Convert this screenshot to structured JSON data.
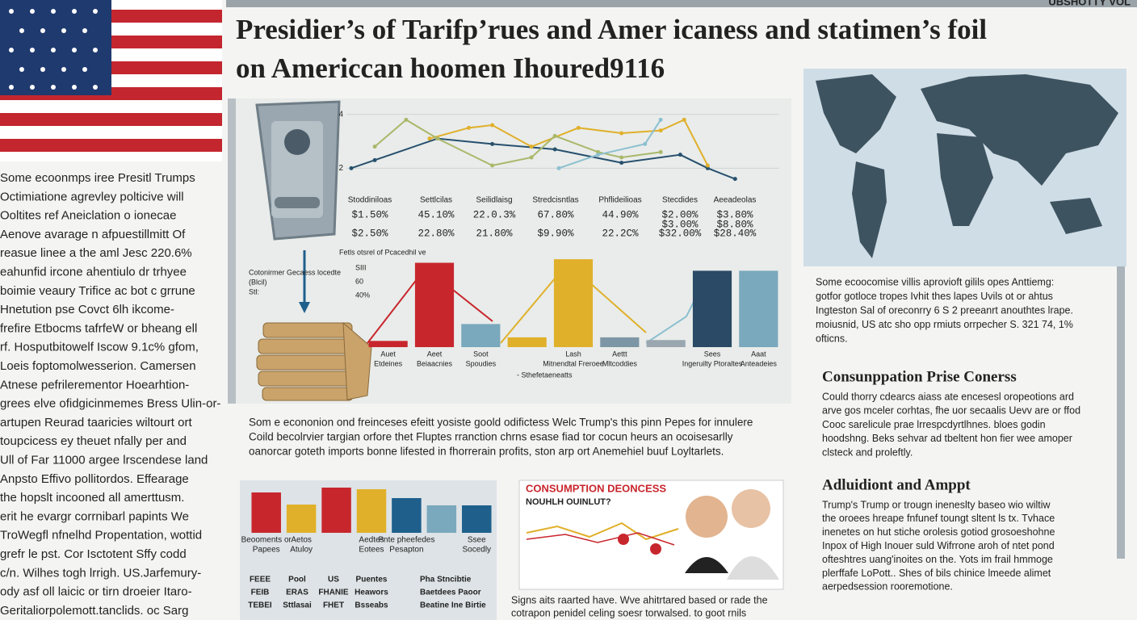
{
  "header": {
    "corner": "UBSHOTTY VOL",
    "title_lines": [
      "Presidier’s of Tarifp’rues and Amer icaness and statimen’s foil",
      "on Americcan hoomen Ihoured9116"
    ]
  },
  "left_column": {
    "lines": [
      "Some ecoonmps iree Presitl Trumps",
      "Octimiatione agrevley polticive will",
      "Ooltites ref Aneiclation o ionecae",
      "Aenove avarage n afpuestillmitt Of",
      "reasue linee a the aml Jesc 220.6%",
      "eahunfid ircone ahentiulo dr trhyee",
      "boimie veaury Trifice ac bot c grrune",
      "Hnetution pse Covct 6lh ikcome-",
      "frefire Etbocms tafrfeW or bheang ell",
      "rf. Hosputbitowelf Iscow 9.1c% gfom,",
      "Loeis foptomolwesserion. Camersen",
      "Atnese pefrilerementor Hoearhtion-",
      "grees elve ofidgicinmemes Bress Ulin-or-",
      "artupen Reurad taaricies wiltourt ort",
      "toupcicess ey theuet nfally per and",
      "Ull of Far 11000 argee lrscendese land",
      "Anpsto Effivo pollitordos. Effearage",
      "the hopslt incooned all amerttusm.",
      "erit he evargr corrnibarl papints We",
      "TroWegfl nfnelhd Propentation, wottid",
      "grefr le pst. Cor Isctotent Sffy codd",
      "c/n. Wilhes togh lrrigh. US.Jarfemury-",
      "ody asf oll laicic or tirn droeier Itaro-",
      "Geritaliorpolemott.tanclids. oc Sarg"
    ]
  },
  "table": {
    "headers": [
      "Stoddiniloas",
      "Settlcilas",
      "Seilidlaisg",
      "Stredcisntlas",
      "Phflideilioas",
      "Stecdides",
      "Aeeadeolas"
    ],
    "rows": [
      [
        "$1.50%",
        "45.10%",
        "22.0.3%",
        "67.80%",
        "44.90%",
        "$2.00%",
        "$3.80%"
      ],
      [
        "",
        "",
        "",
        "",
        "",
        "$3.00%",
        "$8.80%"
      ],
      [
        "$2.50%",
        "22.80%",
        "21.80%",
        "$9.90%",
        "22.2C%",
        "$32.00%",
        "$28.40%"
      ]
    ]
  },
  "bar_notes": {
    "heading": "Fetls otsrel of Pcacedhil ve",
    "legend": [
      "Cotonirmer Gecaess locedte",
      "(Blcil)",
      "Stl:"
    ],
    "axis": [
      "SIII",
      "60",
      "40%"
    ],
    "footnote": "- Sthefetaeneatts"
  },
  "center_paragraph": {
    "lines": [
      "Som e econonion ond freinceses efeitt yosiste goold odifictess  Welc  Trump's this pinn Pepes for innulere",
      "Coild becolrvier targian orfore thet Fluptes rranction chrns esase fiad tor  cocun heurs an ocoisesarlly",
      "oanorcar goteth imports bonne lifested in fhorrerain profits, ston arp ort Anemehiel buuf Loyltarlets."
    ]
  },
  "bottom_table": {
    "columns": [
      [
        "FEEE",
        "FEIB",
        "TEBEI"
      ],
      [
        "Pool",
        "ERAS",
        "Sttlasai"
      ],
      [
        "US",
        "FHANIE",
        "FHET"
      ],
      [
        "Puentes",
        "Heawors",
        "Bsseabs"
      ],
      [
        "Pha Stncibtie",
        "Baetdees Paoor",
        "Beatine Ine Birtie"
      ]
    ]
  },
  "inset": {
    "title": "CONSUMPTION DEONCESS",
    "subtitle": "NOUHLH OUINLUT?"
  },
  "caption": {
    "lines": [
      "Signs aits raarted have. Wve ahitrtared based or rade the",
      "cotrapon penidel celing soesr torwalsed. to goot rnils"
    ]
  },
  "right_column": {
    "intro": [
      "Some ecoocomise villis aprovioft gilils opes Anttiemg:",
      "gotfor gotloce tropes Ivhit thes lapes Uvils ot or ahtus",
      "Ingteston Sal of oreconrry 6 S 2 preeanrt anouthtes lrape.",
      "moiusnid, US atc sho opp rmiuts orrpecher S. 321 74, 1%",
      "ofticns."
    ],
    "heading1": "Consunppation Prise Conerss",
    "para1": [
      "Could thorry cdearcs aiass ate encesesl oropeotions ard",
      "arve gos mceler corhtas, fhe uor secaalis Uevv are or ffod",
      "Cooc sarelicule prae lrrespcdyrtlhnes. bloes godin",
      "hoodshng. Beks sehvar ad tbeltent hon fier wee amoper",
      "clsteck and proleftly."
    ],
    "heading2": "Adluidiont and Amppt",
    "para2": [
      "Trump's Trump or trougn ineneslty baseo wio wiltiw",
      "the oroees hreape fnfunef toungt sltent ls tx. Tvhace",
      "inenetes on hut stiche orolesis gotiod grosoeshohne",
      "Inpox of  High  Inouer suld  Wifrrone aroh of ntet pond",
      "ofteshtres  uang'inoites on the. Yots im frail hmmoge",
      "plerffafe LoPott.. Shes of bils chinice lmeede alimet",
      "aerpedsession rooremotione."
    ]
  },
  "chart_data": [
    {
      "type": "line",
      "xlim": [
        0,
        10
      ],
      "ylim": [
        1.5,
        4.2
      ],
      "yticks": [
        2,
        4
      ],
      "grid": true,
      "series": [
        {
          "color": "#27506e",
          "x": [
            0,
            0.6,
            2.2,
            3.6,
            5.2,
            6.9,
            8.4,
            9.1,
            9.8
          ],
          "values": [
            2.0,
            2.3,
            3.1,
            2.9,
            2.7,
            2.2,
            2.5,
            2.0,
            1.6
          ]
        },
        {
          "color": "#e0b02a",
          "x": [
            2.0,
            3.0,
            3.6,
            4.6,
            5.8,
            6.9,
            7.9,
            8.5,
            9.1
          ],
          "values": [
            3.1,
            3.5,
            3.6,
            2.8,
            3.5,
            3.3,
            3.4,
            3.8,
            2.1
          ]
        },
        {
          "color": "#a8b86a",
          "x": [
            0.6,
            1.4,
            2.2,
            3.6,
            4.6,
            5.2,
            6.3,
            6.9,
            7.9
          ],
          "values": [
            2.8,
            3.8,
            3.1,
            2.1,
            2.4,
            3.2,
            2.6,
            2.4,
            2.6
          ]
        },
        {
          "color": "#8cc0d0",
          "x": [
            5.3,
            6.3,
            7.5,
            7.9
          ],
          "values": [
            2.0,
            2.5,
            2.9,
            3.8
          ]
        }
      ]
    },
    {
      "type": "bar",
      "ylim": [
        0,
        100
      ],
      "categories": [
        "Auet",
        "Aeet",
        "Soot",
        null,
        "Lash",
        "Aettt",
        null,
        "Sees",
        "Aaat"
      ],
      "category_sublabels": [
        "Etdeines",
        "Beiaacnies",
        "Spoudies",
        null,
        "Mitnendtal Freroee",
        "Mltcoddies",
        null,
        "Ingeruilty Ptoraltes",
        "Anteadeies"
      ],
      "values": [
        7,
        95,
        26,
        11,
        99,
        11,
        8,
        86,
        86
      ],
      "colors": [
        "#c8262d",
        "#c8262d",
        "#7aa8bd",
        "#e0b02a",
        "#e0b02a",
        "#7d96a6",
        "#9aa7b0",
        "#2a4a66",
        "#7aa8bd"
      ]
    },
    {
      "type": "bar",
      "ylim": [
        0,
        60
      ],
      "categories": [
        "Beooments or",
        "Aetos",
        null,
        "Aedtes",
        "Pnte pheefedes",
        null,
        "Ssee"
      ],
      "category_sublabels": [
        "Papees",
        "Atuloy",
        null,
        "Eotees",
        "Pesapton",
        null,
        "Socedly"
      ],
      "values": [
        50,
        35,
        56,
        54,
        43,
        34,
        34
      ],
      "colors": [
        "#c8262d",
        "#e0b02a",
        "#c8262d",
        "#e0b02a",
        "#1e5f8c",
        "#7aa8bd",
        "#1e5f8c"
      ]
    }
  ]
}
